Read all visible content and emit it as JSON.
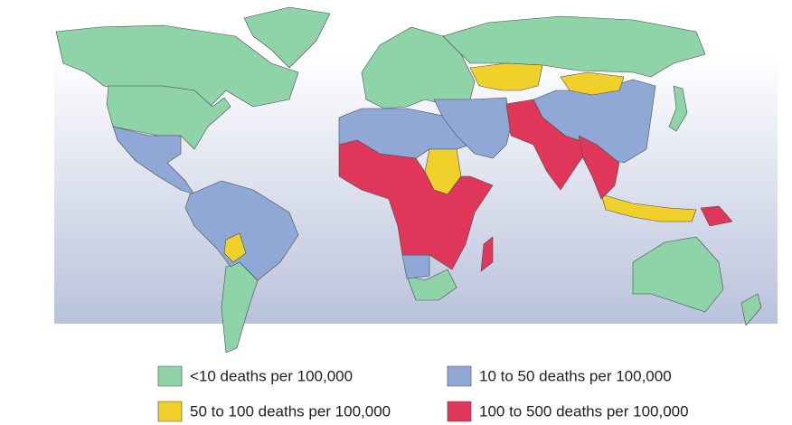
{
  "legend": [
    {
      "label": "<10 deaths per 100,000",
      "color": "#8fd3a8"
    },
    {
      "label": "10 to 50 deaths per 100,000",
      "color": "#8fa8d6"
    },
    {
      "label": "50 to 100 deaths per 100,000",
      "color": "#f0d02a"
    },
    {
      "label": "100 to 500 deaths per 100,000",
      "color": "#e0365a"
    }
  ]
}
